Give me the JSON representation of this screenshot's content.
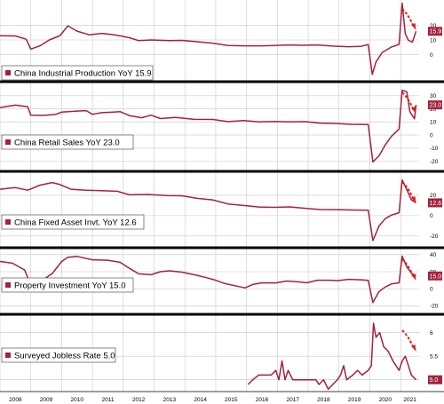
{
  "colors": {
    "line": "#A6213A",
    "grid": "#c8c8c8",
    "separator": "#000000",
    "arrow": "#E01E1E"
  },
  "chart_data": [
    {
      "type": "line",
      "series": [
        {
          "name": "China Industrial Production YoY 15.9",
          "last_label": "15.9",
          "points": [
            [
              2008.0,
              12.9
            ],
            [
              2008.5,
              12.7
            ],
            [
              2008.85,
              10.5
            ],
            [
              2009.0,
              3.8
            ],
            [
              2009.3,
              6.0
            ],
            [
              2009.6,
              10.0
            ],
            [
              2009.95,
              13.0
            ],
            [
              2010.2,
              19.6
            ],
            [
              2010.5,
              16.0
            ],
            [
              2010.9,
              13.5
            ],
            [
              2011.3,
              14.5
            ],
            [
              2011.6,
              13.8
            ],
            [
              2011.9,
              12.8
            ],
            [
              2012.2,
              11.5
            ],
            [
              2012.5,
              9.5
            ],
            [
              2012.9,
              10.0
            ],
            [
              2013.5,
              9.5
            ],
            [
              2013.9,
              9.7
            ],
            [
              2014.4,
              8.8
            ],
            [
              2014.9,
              7.8
            ],
            [
              2015.4,
              6.2
            ],
            [
              2015.9,
              6.0
            ],
            [
              2016.5,
              6.0
            ],
            [
              2016.9,
              6.2
            ],
            [
              2017.4,
              6.6
            ],
            [
              2017.8,
              6.4
            ],
            [
              2018.3,
              6.6
            ],
            [
              2018.8,
              5.8
            ],
            [
              2019.3,
              5.4
            ],
            [
              2019.7,
              5.6
            ],
            [
              2019.95,
              6.9
            ],
            [
              2020.08,
              -13.5
            ],
            [
              2020.2,
              -5.0
            ],
            [
              2020.4,
              1.5
            ],
            [
              2020.7,
              5.2
            ],
            [
              2020.95,
              7.0
            ],
            [
              2021.05,
              35.1
            ],
            [
              2021.15,
              14.1
            ],
            [
              2021.25,
              9.8
            ],
            [
              2021.38,
              8.5
            ],
            [
              2021.5,
              15.9
            ]
          ]
        }
      ],
      "y_ticks": [
        0,
        10,
        20
      ],
      "ylim": [
        -16,
        36
      ]
    },
    {
      "type": "line",
      "series": [
        {
          "name": "China Retail Sales YoY 23.0",
          "last_label": "23.0",
          "points": [
            [
              2008.0,
              21.0
            ],
            [
              2008.5,
              22.8
            ],
            [
              2008.9,
              21.6
            ],
            [
              2009.0,
              15.2
            ],
            [
              2009.4,
              15.0
            ],
            [
              2009.8,
              15.7
            ],
            [
              2010.0,
              17.5
            ],
            [
              2010.5,
              18.3
            ],
            [
              2010.8,
              18.6
            ],
            [
              2011.0,
              15.8
            ],
            [
              2011.3,
              17.1
            ],
            [
              2011.9,
              17.8
            ],
            [
              2012.2,
              14.8
            ],
            [
              2012.6,
              13.2
            ],
            [
              2012.9,
              15.2
            ],
            [
              2013.2,
              12.6
            ],
            [
              2013.7,
              13.4
            ],
            [
              2014.3,
              12.0
            ],
            [
              2014.9,
              11.9
            ],
            [
              2015.4,
              10.2
            ],
            [
              2015.9,
              11.1
            ],
            [
              2016.4,
              10.0
            ],
            [
              2016.9,
              10.3
            ],
            [
              2017.4,
              10.0
            ],
            [
              2017.9,
              10.2
            ],
            [
              2018.4,
              9.0
            ],
            [
              2018.9,
              8.8
            ],
            [
              2019.4,
              8.2
            ],
            [
              2019.95,
              8.0
            ],
            [
              2020.1,
              -20.5
            ],
            [
              2020.3,
              -15.8
            ],
            [
              2020.5,
              -7.5
            ],
            [
              2020.7,
              -1.0
            ],
            [
              2020.95,
              4.6
            ],
            [
              2021.05,
              34.2
            ],
            [
              2021.2,
              33.0
            ],
            [
              2021.3,
              17.7
            ],
            [
              2021.45,
              12.4
            ],
            [
              2021.5,
              23.0
            ]
          ]
        }
      ],
      "y_ticks": [
        30,
        20,
        10,
        0,
        -10,
        -20
      ],
      "ylim": [
        -25,
        38
      ]
    },
    {
      "type": "line",
      "series": [
        {
          "name": "China Fixed Asset Invt. YoY 12.6",
          "last_label": "12.6",
          "points": [
            [
              2008.0,
              26.0
            ],
            [
              2008.5,
              27.5
            ],
            [
              2008.9,
              25.0
            ],
            [
              2009.3,
              30.0
            ],
            [
              2009.7,
              32.5
            ],
            [
              2009.95,
              30.5
            ],
            [
              2010.3,
              26.0
            ],
            [
              2010.8,
              25.0
            ],
            [
              2011.3,
              24.5
            ],
            [
              2011.8,
              24.0
            ],
            [
              2012.2,
              20.5
            ],
            [
              2012.8,
              20.8
            ],
            [
              2013.4,
              19.8
            ],
            [
              2013.9,
              19.5
            ],
            [
              2014.4,
              17.0
            ],
            [
              2014.9,
              15.5
            ],
            [
              2015.4,
              11.5
            ],
            [
              2015.9,
              10.0
            ],
            [
              2016.4,
              8.5
            ],
            [
              2016.9,
              8.2
            ],
            [
              2017.4,
              8.6
            ],
            [
              2017.9,
              7.2
            ],
            [
              2018.4,
              6.0
            ],
            [
              2018.9,
              5.9
            ],
            [
              2019.4,
              5.6
            ],
            [
              2019.95,
              5.4
            ],
            [
              2020.1,
              -24.5
            ],
            [
              2020.3,
              -10.0
            ],
            [
              2020.5,
              -3.0
            ],
            [
              2020.7,
              0.6
            ],
            [
              2020.95,
              2.9
            ],
            [
              2021.05,
              35.0
            ],
            [
              2021.2,
              25.6
            ],
            [
              2021.35,
              15.4
            ],
            [
              2021.5,
              12.6
            ]
          ]
        }
      ],
      "y_ticks": [
        20,
        0,
        -20
      ],
      "ylim": [
        -28,
        40
      ]
    },
    {
      "type": "line",
      "series": [
        {
          "name": "Property Investment YoY 15.0",
          "last_label": "15.0",
          "points": [
            [
              2008.0,
              32.0
            ],
            [
              2008.4,
              30.0
            ],
            [
              2008.8,
              22.0
            ],
            [
              2009.0,
              4.0
            ],
            [
              2009.3,
              8.0
            ],
            [
              2009.7,
              18.0
            ],
            [
              2010.0,
              32.0
            ],
            [
              2010.2,
              37.0
            ],
            [
              2010.5,
              38.0
            ],
            [
              2011.0,
              34.0
            ],
            [
              2011.5,
              33.5
            ],
            [
              2011.9,
              31.0
            ],
            [
              2012.2,
              24.0
            ],
            [
              2012.5,
              17.5
            ],
            [
              2012.9,
              16.5
            ],
            [
              2013.2,
              20.0
            ],
            [
              2013.5,
              21.0
            ],
            [
              2013.9,
              19.5
            ],
            [
              2014.3,
              16.5
            ],
            [
              2014.7,
              13.0
            ],
            [
              2014.95,
              10.5
            ],
            [
              2015.3,
              6.0
            ],
            [
              2015.7,
              3.0
            ],
            [
              2015.95,
              1.0
            ],
            [
              2016.2,
              5.0
            ],
            [
              2016.5,
              7.0
            ],
            [
              2016.95,
              6.9
            ],
            [
              2017.3,
              9.0
            ],
            [
              2017.7,
              8.0
            ],
            [
              2017.95,
              7.0
            ],
            [
              2018.3,
              10.0
            ],
            [
              2018.7,
              10.0
            ],
            [
              2018.95,
              9.5
            ],
            [
              2019.3,
              11.0
            ],
            [
              2019.7,
              10.5
            ],
            [
              2019.95,
              9.9
            ],
            [
              2020.1,
              -16.3
            ],
            [
              2020.3,
              -3.3
            ],
            [
              2020.5,
              2.0
            ],
            [
              2020.7,
              5.6
            ],
            [
              2020.95,
              7.0
            ],
            [
              2021.05,
              38.3
            ],
            [
              2021.2,
              25.6
            ],
            [
              2021.35,
              18.3
            ],
            [
              2021.5,
              15.0
            ]
          ]
        }
      ],
      "y_ticks": [
        40,
        20,
        0,
        -20
      ],
      "ylim": [
        -28,
        44
      ]
    },
    {
      "type": "line",
      "series": [
        {
          "name": "Surveyed Jobless Rate 5.0",
          "last_label": "5.0",
          "points": [
            [
              2016.05,
              4.9
            ],
            [
              2016.2,
              5.0
            ],
            [
              2016.4,
              5.1
            ],
            [
              2016.6,
              5.1
            ],
            [
              2016.8,
              5.1
            ],
            [
              2016.95,
              5.2
            ],
            [
              2017.05,
              5.0
            ],
            [
              2017.15,
              5.4
            ],
            [
              2017.25,
              5.0
            ],
            [
              2017.35,
              5.2
            ],
            [
              2017.5,
              5.0
            ],
            [
              2017.7,
              5.0
            ],
            [
              2017.9,
              5.0
            ],
            [
              2018.05,
              5.0
            ],
            [
              2018.15,
              5.0
            ],
            [
              2018.25,
              5.0
            ],
            [
              2018.35,
              4.9
            ],
            [
              2018.5,
              5.0
            ],
            [
              2018.65,
              4.8
            ],
            [
              2018.8,
              4.9
            ],
            [
              2018.95,
              5.0
            ],
            [
              2019.05,
              5.1
            ],
            [
              2019.15,
              5.3
            ],
            [
              2019.25,
              5.0
            ],
            [
              2019.45,
              5.1
            ],
            [
              2019.6,
              5.2
            ],
            [
              2019.75,
              5.1
            ],
            [
              2019.95,
              5.2
            ],
            [
              2020.05,
              5.3
            ],
            [
              2020.12,
              6.2
            ],
            [
              2020.2,
              5.9
            ],
            [
              2020.32,
              6.0
            ],
            [
              2020.45,
              5.7
            ],
            [
              2020.6,
              5.6
            ],
            [
              2020.75,
              5.4
            ],
            [
              2020.85,
              5.3
            ],
            [
              2020.95,
              5.2
            ],
            [
              2021.05,
              5.4
            ],
            [
              2021.15,
              5.5
            ],
            [
              2021.25,
              5.3
            ],
            [
              2021.35,
              5.1
            ],
            [
              2021.5,
              5.0
            ]
          ]
        }
      ],
      "y_ticks": [
        6.0,
        5.5,
        5.0
      ],
      "ylim": [
        4.75,
        6.35
      ]
    }
  ],
  "x_axis": {
    "range": [
      2008,
      2021.6
    ],
    "labels": [
      "2008",
      "2009",
      "2010",
      "2011",
      "2012",
      "2013",
      "2014",
      "2015",
      "2016",
      "2017",
      "2018",
      "2019",
      "2020",
      "2021"
    ]
  }
}
